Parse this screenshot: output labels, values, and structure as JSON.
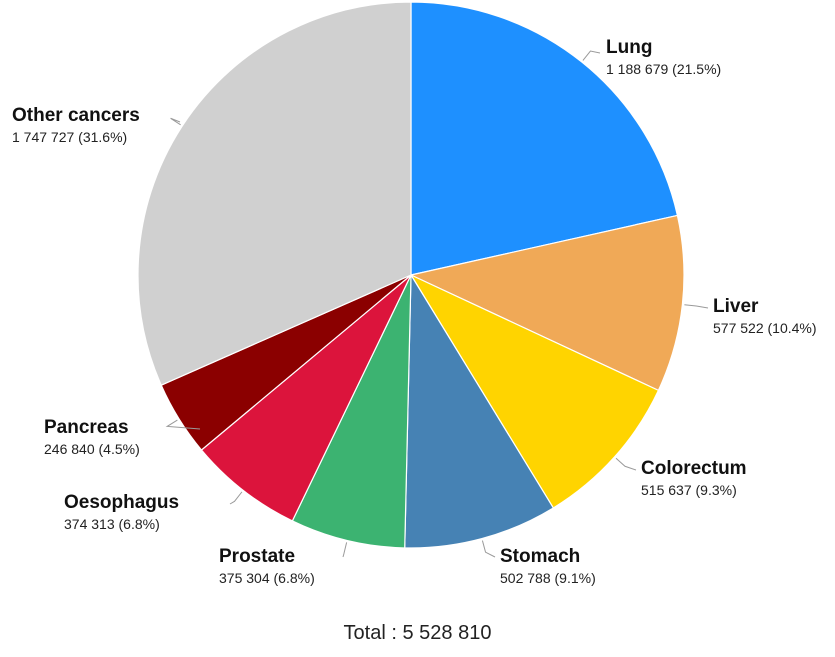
{
  "chart_data": {
    "type": "pie",
    "title": "",
    "start_angle_deg": 0,
    "direction": "clockwise",
    "total_label": "Total : 5 528 810",
    "slices": [
      {
        "name": "Lung",
        "value": 1188679,
        "value_label": "1 188 679 (21.5%)",
        "percent": 21.5,
        "color": "#1e90ff"
      },
      {
        "name": "Liver",
        "value": 577522,
        "value_label": "577 522 (10.4%)",
        "percent": 10.4,
        "color": "#f0a957"
      },
      {
        "name": "Colorectum",
        "value": 515637,
        "value_label": "515 637 (9.3%)",
        "percent": 9.3,
        "color": "#ffd400"
      },
      {
        "name": "Stomach",
        "value": 502788,
        "value_label": "502 788 (9.1%)",
        "percent": 9.1,
        "color": "#4682b4"
      },
      {
        "name": "Prostate",
        "value": 375304,
        "value_label": "375 304 (6.8%)",
        "percent": 6.8,
        "color": "#3cb371"
      },
      {
        "name": "Oesophagus",
        "value": 374313,
        "value_label": "374 313 (6.8%)",
        "percent": 6.8,
        "color": "#dc143c"
      },
      {
        "name": "Pancreas",
        "value": 246840,
        "value_label": "246 840 (4.5%)",
        "percent": 4.5,
        "color": "#8b0000"
      },
      {
        "name": "Other cancers",
        "value": 1747727,
        "value_label": "1 747 727 (31.6%)",
        "percent": 31.6,
        "color": "#d0d0d0"
      }
    ]
  }
}
